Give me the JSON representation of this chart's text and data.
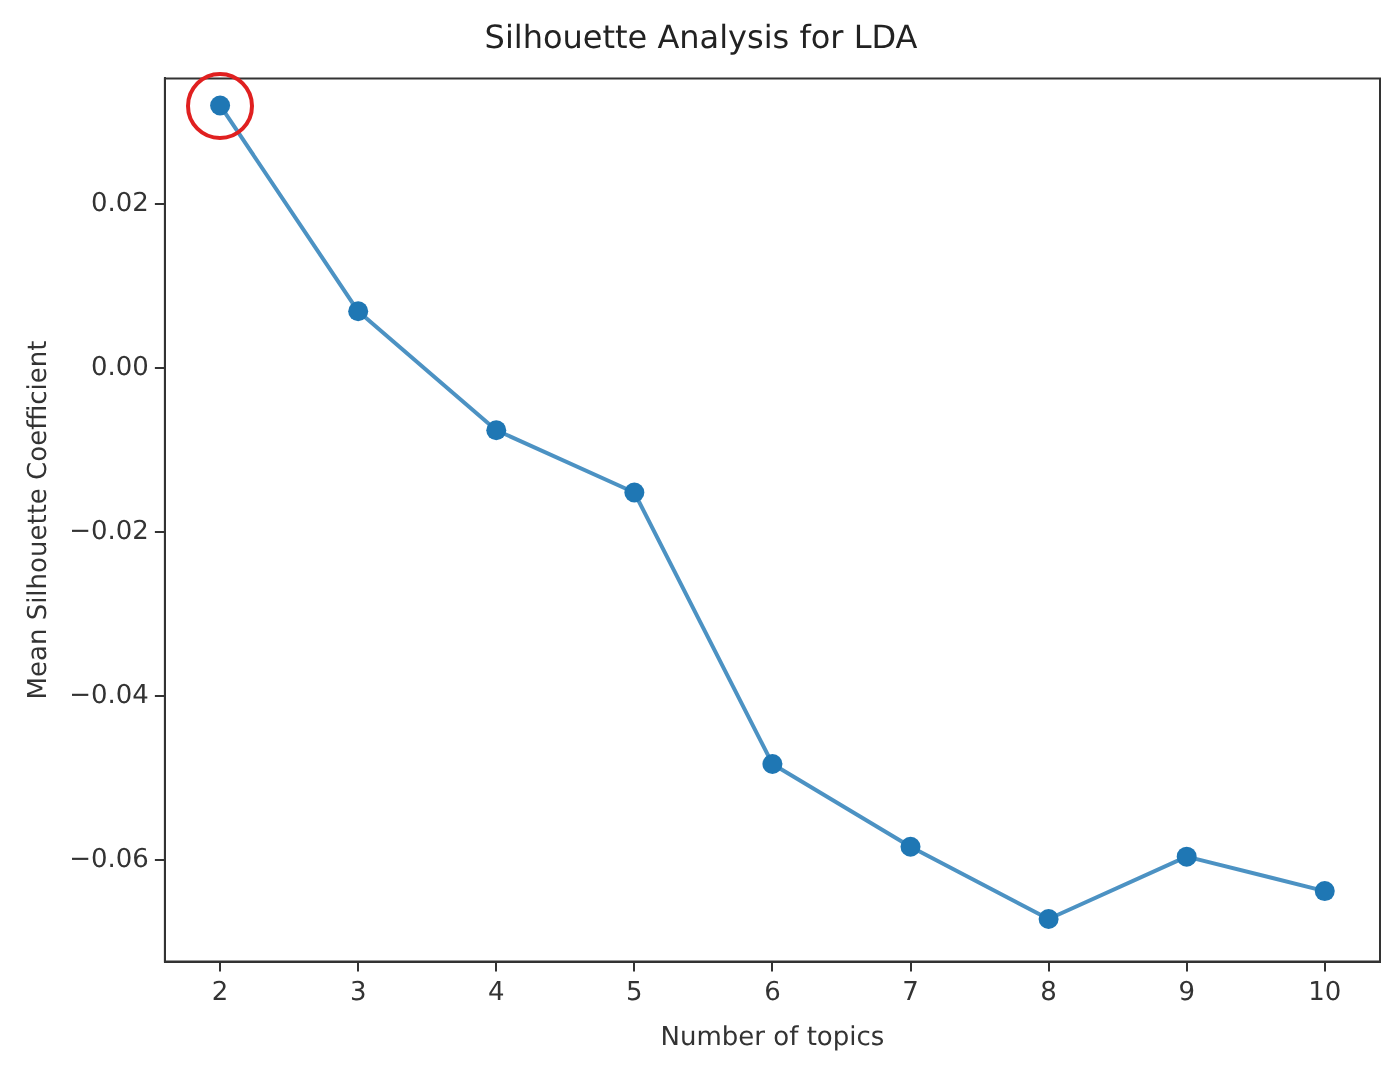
{
  "chart_data": {
    "type": "line",
    "title": "Silhouette Analysis for LDA",
    "xlabel": "Number of topics",
    "ylabel": "Mean Silhouette Coefficient",
    "x": [
      2,
      3,
      4,
      5,
      6,
      7,
      8,
      9,
      10
    ],
    "series": [
      {
        "color": "#1f77b4",
        "values": [
          0.032,
          0.0069,
          -0.0076,
          -0.0152,
          -0.0483,
          -0.0584,
          -0.0672,
          -0.0596,
          -0.0638
        ]
      }
    ],
    "xlim": [
      1.6,
      10.4
    ],
    "xticks": [
      2,
      3,
      4,
      5,
      6,
      7,
      8,
      9,
      10
    ],
    "ylim": [
      -0.0724,
      0.0353
    ],
    "yticks": [
      {
        "value": -0.06,
        "label": "−0.06"
      },
      {
        "value": -0.04,
        "label": "−0.04"
      },
      {
        "value": -0.02,
        "label": "−0.02"
      },
      {
        "value": 0,
        "label": "0.00"
      },
      {
        "value": 0.02,
        "label": "0.02"
      }
    ],
    "grid": false,
    "legend": false,
    "marker": "circle",
    "line_style": "solid"
  }
}
